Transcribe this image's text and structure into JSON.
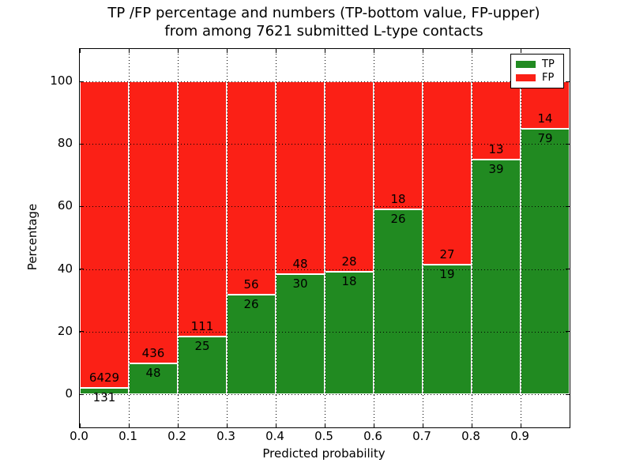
{
  "chart_data": {
    "type": "bar",
    "stacked": true,
    "title_line1": "TP /FP percentage and numbers (TP-bottom value, FP-upper)",
    "title_line2": "from among 7621 submitted L-type contacts",
    "total_submitted": 7621,
    "xlabel": "Predicted probability",
    "ylabel": "Percentage",
    "x_tick_labels": [
      "0.0",
      "0.1",
      "0.2",
      "0.3",
      "0.4",
      "0.5",
      "0.6",
      "0.7",
      "0.8",
      "0.9"
    ],
    "y_tick_labels": [
      "0",
      "20",
      "40",
      "60",
      "80",
      "100"
    ],
    "y_ticks": [
      0,
      20,
      40,
      60,
      80,
      100
    ],
    "xlim": [
      0.0,
      1.0
    ],
    "ylim": [
      0,
      100
    ],
    "grid": "dotted",
    "bins": [
      {
        "range": "0.0-0.1",
        "tp": 131,
        "fp": 6429,
        "tp_percent": 2.0
      },
      {
        "range": "0.1-0.2",
        "tp": 48,
        "fp": 436,
        "tp_percent": 9.9
      },
      {
        "range": "0.2-0.3",
        "tp": 25,
        "fp": 111,
        "tp_percent": 18.4
      },
      {
        "range": "0.3-0.4",
        "tp": 26,
        "fp": 56,
        "tp_percent": 31.7
      },
      {
        "range": "0.4-0.5",
        "tp": 30,
        "fp": 48,
        "tp_percent": 38.5
      },
      {
        "range": "0.5-0.6",
        "tp": 18,
        "fp": 28,
        "tp_percent": 39.1
      },
      {
        "range": "0.6-0.7",
        "tp": 26,
        "fp": 18,
        "tp_percent": 59.1
      },
      {
        "range": "0.7-0.8",
        "tp": 19,
        "fp": 27,
        "tp_percent": 41.3
      },
      {
        "range": "0.8-0.9",
        "tp": 39,
        "fp": 13,
        "tp_percent": 75.0
      },
      {
        "range": "0.9-1.0",
        "tp": 79,
        "fp": 14,
        "tp_percent": 84.9
      }
    ],
    "series": [
      {
        "name": "TP",
        "color": "#218a21"
      },
      {
        "name": "FP",
        "color": "#fb2016"
      }
    ],
    "legend": {
      "position": "upper right",
      "entries": [
        {
          "label": "TP",
          "color": "#218a21"
        },
        {
          "label": "FP",
          "color": "#fb2016"
        }
      ]
    }
  }
}
